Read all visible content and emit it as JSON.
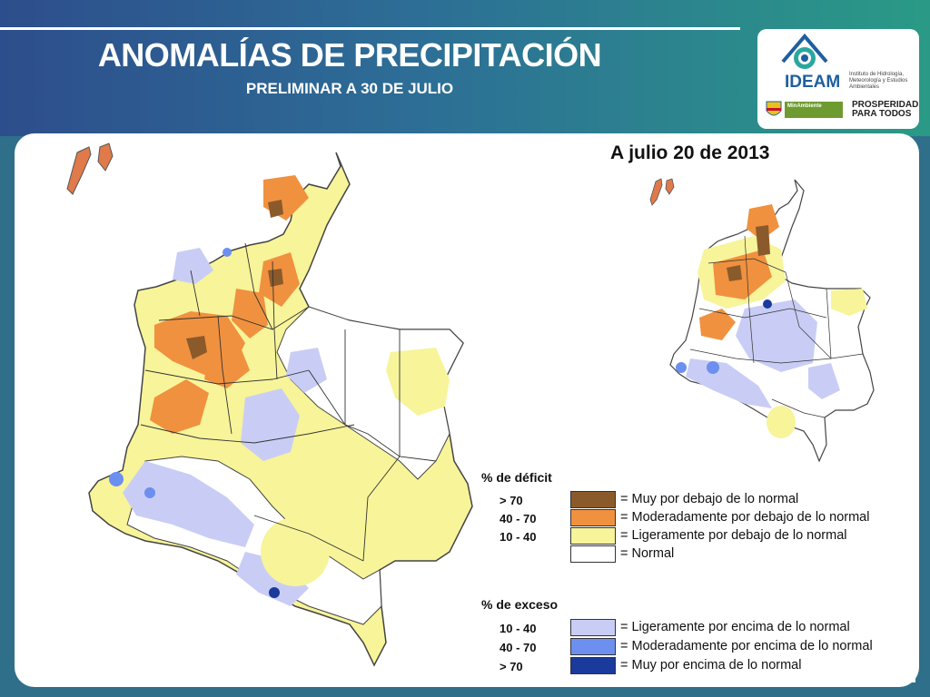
{
  "header": {
    "title": "ANOMALÍAS DE PRECIPITACIÓN",
    "subtitle": "PRELIMINAR A 30 DE JULIO"
  },
  "logo": {
    "name": "IDEAM",
    "description": "Instituto de Hidrología, Meteorología y Estudios Ambientales",
    "ministry": "MinAmbiente",
    "slogan": "PROSPERIDAD PARA TODOS"
  },
  "maps": {
    "secondary_title": "A julio 20 de 2013"
  },
  "legend": {
    "deficit_header": "% de déficit",
    "excess_header": "% de exceso",
    "deficit": [
      {
        "range": "> 70",
        "label": "= Muy por debajo de lo normal",
        "color": "#8b5a2b"
      },
      {
        "range": "40 -  70",
        "label": "= Moderadamente por debajo de lo normal",
        "color": "#f0913f"
      },
      {
        "range": "10 -  40",
        "label": "= Ligeramente por debajo de lo normal",
        "color": "#f7f49a"
      },
      {
        "range": "",
        "label": "= Normal",
        "color": "#ffffff"
      }
    ],
    "excess": [
      {
        "range": "10 -  40",
        "label": "= Ligeramente por encima de lo normal",
        "color": "#c9cdf5"
      },
      {
        "range": "40 -  70",
        "label": "= Moderadamente por encima de lo normal",
        "color": "#6d8ff0"
      },
      {
        "range": "> 70",
        "label": "= Muy por encima de lo normal",
        "color": "#1a3a9c"
      }
    ]
  },
  "colors": {
    "header_start": "#2d4e8c",
    "header_end": "#2a9a86",
    "ideam_blue": "#1e5f9e"
  }
}
